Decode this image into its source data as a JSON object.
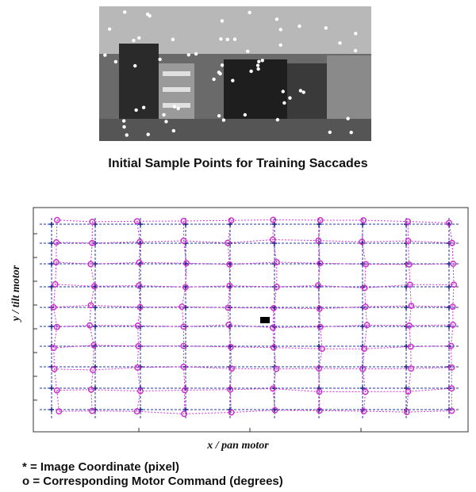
{
  "figure": {
    "caption": "Initial Sample Points for Training Saccades",
    "x_label": "x / pan motor",
    "y_label": "y / tilt motor",
    "legend": [
      "* = Image Coordinate (pixel)",
      "o = Corresponding Motor Command (degrees)"
    ]
  }
}
